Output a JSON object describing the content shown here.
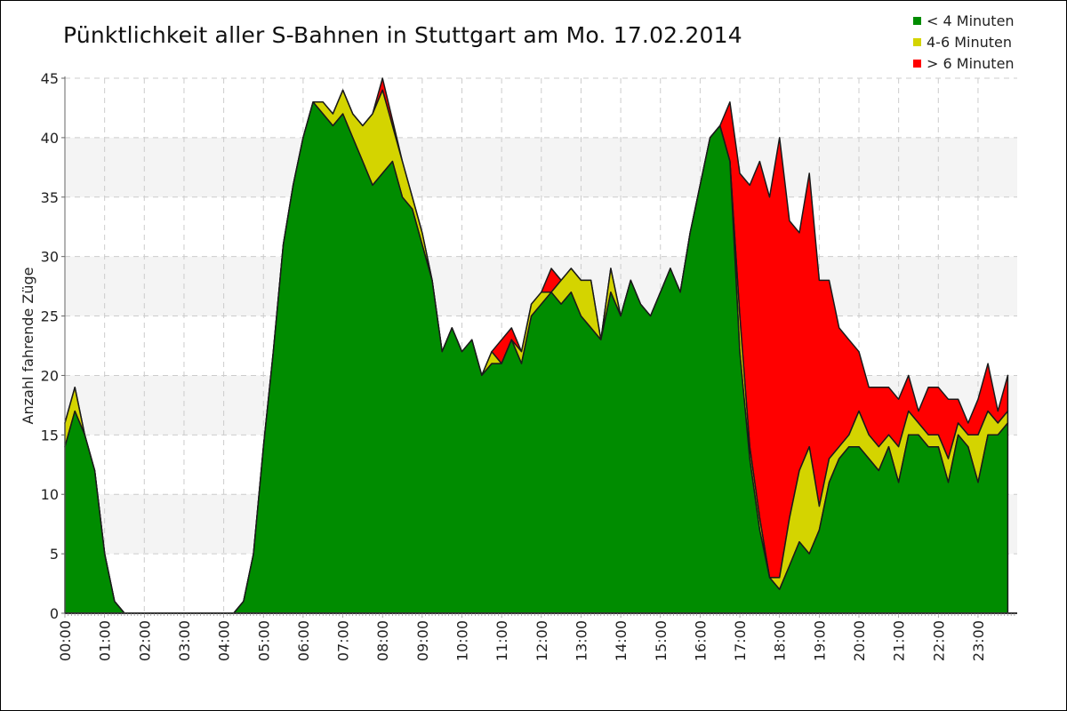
{
  "chart_data": {
    "type": "area",
    "stacked": true,
    "title": "Pünktlichkeit aller S-Bahnen in Stuttgart am Mo. 17.02.2014",
    "xlabel": "",
    "ylabel": "Anzahl fahrende Züge",
    "ylim": [
      0,
      45
    ],
    "yticks": [
      "0",
      "5",
      "10",
      "15",
      "20",
      "25",
      "30",
      "35",
      "40",
      "45"
    ],
    "xticks": [
      "00:00",
      "01:00",
      "02:00",
      "03:00",
      "04:00",
      "05:00",
      "06:00",
      "07:00",
      "08:00",
      "09:00",
      "10:00",
      "11:00",
      "12:00",
      "13:00",
      "14:00",
      "15:00",
      "16:00",
      "17:00",
      "18:00",
      "19:00",
      "20:00",
      "21:00",
      "22:00",
      "23:00"
    ],
    "x_step_minutes": 15,
    "grid": true,
    "legend_position": "top-right",
    "series": [
      {
        "name": "< 4 Minuten",
        "color": "#008c00",
        "values": [
          14,
          17,
          15,
          12,
          5,
          1,
          0,
          0,
          0,
          0,
          0,
          0,
          0,
          0,
          0,
          0,
          0,
          0,
          1,
          5,
          14,
          22,
          31,
          36,
          40,
          43,
          42,
          41,
          42,
          40,
          38,
          36,
          37,
          38,
          35,
          34,
          31,
          28,
          22,
          24,
          22,
          23,
          20,
          21,
          21,
          23,
          21,
          25,
          26,
          27,
          26,
          27,
          25,
          24,
          23,
          27,
          25,
          28,
          26,
          25,
          27,
          29,
          27,
          32,
          36,
          40,
          41,
          38,
          22,
          13,
          7,
          3,
          2,
          4,
          6,
          5,
          7,
          11,
          13,
          14,
          14,
          13,
          12,
          14,
          11,
          15,
          15,
          14,
          14,
          11,
          15,
          14,
          11,
          15,
          15,
          16
        ]
      },
      {
        "name": "4-6 Minuten",
        "color": "#d4d400",
        "values": [
          2,
          2,
          0,
          0,
          0,
          0,
          0,
          0,
          0,
          0,
          0,
          0,
          0,
          0,
          0,
          0,
          0,
          0,
          0,
          0,
          0,
          0,
          0,
          0,
          0,
          0,
          1,
          1,
          2,
          2,
          3,
          6,
          7,
          3,
          3,
          1,
          1,
          0,
          0,
          0,
          0,
          0,
          0,
          1,
          0,
          0,
          1,
          1,
          1,
          0,
          2,
          2,
          3,
          4,
          0,
          2,
          0,
          0,
          0,
          0,
          0,
          0,
          0,
          0,
          0,
          0,
          0,
          0,
          3,
          1,
          1,
          0,
          1,
          4,
          6,
          9,
          2,
          2,
          1,
          1,
          3,
          2,
          2,
          1,
          3,
          2,
          1,
          1,
          1,
          2,
          1,
          1,
          4,
          2,
          1,
          1
        ]
      },
      {
        "name": "> 6 Minuten",
        "color": "#ff0000",
        "values": [
          0,
          0,
          0,
          0,
          0,
          0,
          0,
          0,
          0,
          0,
          0,
          0,
          0,
          0,
          0,
          0,
          0,
          0,
          0,
          0,
          0,
          0,
          0,
          0,
          0,
          0,
          0,
          0,
          0,
          0,
          0,
          0,
          1,
          0.5,
          0,
          0,
          0,
          0,
          0,
          0,
          0,
          0,
          0,
          0,
          2,
          1,
          0,
          0,
          0,
          2,
          0,
          0,
          0,
          0,
          0,
          0,
          0,
          0,
          0,
          0,
          0,
          0,
          0,
          0,
          0,
          0,
          0,
          5,
          12,
          22,
          30,
          32,
          37,
          25,
          20,
          23,
          19,
          15,
          10,
          8,
          5,
          4,
          5,
          4,
          4,
          3,
          1,
          4,
          4,
          5,
          2,
          1,
          3,
          4,
          1,
          3
        ]
      }
    ]
  }
}
